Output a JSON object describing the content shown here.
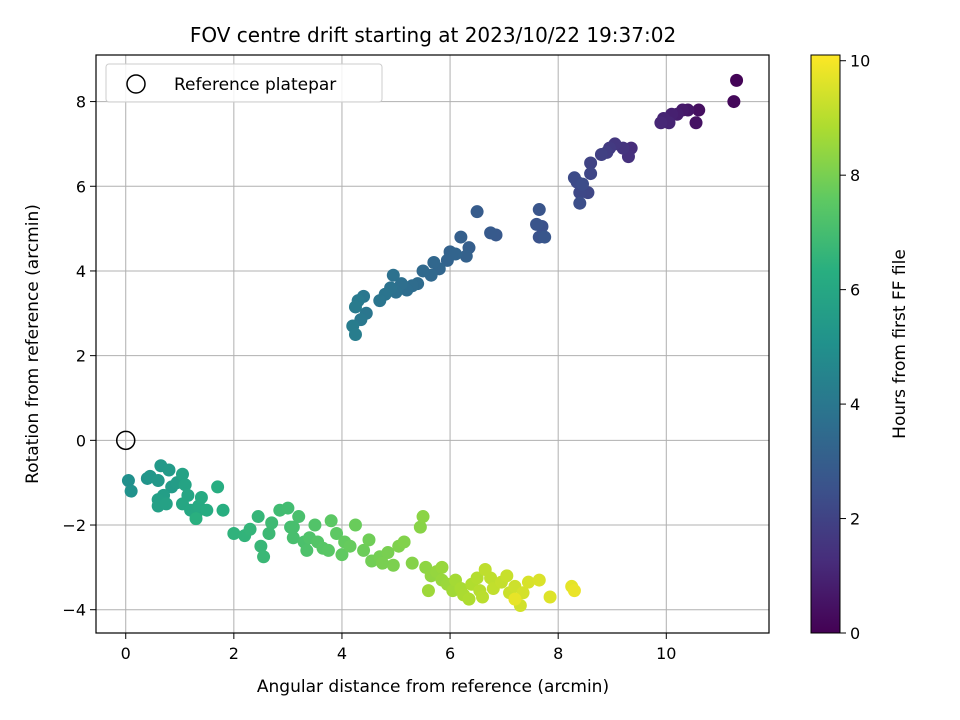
{
  "chart_data": {
    "type": "scatter",
    "title": "FOV centre drift starting at 2023/10/22 19:37:02",
    "xlabel": "Angular distance from reference (arcmin)",
    "ylabel": "Rotation from reference (arcmin)",
    "xlim": [
      -0.55,
      11.9
    ],
    "ylim": [
      -4.55,
      9.1
    ],
    "xticks": [
      0,
      2,
      4,
      6,
      8,
      10
    ],
    "yticks": [
      -4,
      -2,
      0,
      2,
      4,
      6,
      8
    ],
    "grid": true,
    "legend": {
      "entries": [
        "Reference platepar"
      ],
      "position": "upper-left"
    },
    "reference_point": {
      "x": 0,
      "y": 0
    },
    "colorbar": {
      "label": "Hours from first FF file",
      "colormap": "viridis",
      "range": [
        0,
        10.1
      ],
      "ticks": [
        0,
        2,
        4,
        6,
        8,
        10
      ]
    },
    "points": [
      [
        11.3,
        8.5,
        0.1
      ],
      [
        11.25,
        8.0,
        0.2
      ],
      [
        10.6,
        7.8,
        0.4
      ],
      [
        10.55,
        7.5,
        0.5
      ],
      [
        10.4,
        7.8,
        0.6
      ],
      [
        10.3,
        7.8,
        0.7
      ],
      [
        10.2,
        7.7,
        0.8
      ],
      [
        10.1,
        7.7,
        0.9
      ],
      [
        10.05,
        7.5,
        1.0
      ],
      [
        9.95,
        7.6,
        1.0
      ],
      [
        9.9,
        7.5,
        1.1
      ],
      [
        9.35,
        6.9,
        1.3
      ],
      [
        9.3,
        6.7,
        1.4
      ],
      [
        9.2,
        6.9,
        1.5
      ],
      [
        9.05,
        7.0,
        1.6
      ],
      [
        8.95,
        6.9,
        1.7
      ],
      [
        8.9,
        6.8,
        1.8
      ],
      [
        8.8,
        6.75,
        1.9
      ],
      [
        8.6,
        6.55,
        2.0
      ],
      [
        8.6,
        6.3,
        2.1
      ],
      [
        8.55,
        5.85,
        2.15
      ],
      [
        8.4,
        5.85,
        2.2
      ],
      [
        8.35,
        6.1,
        2.25
      ],
      [
        8.3,
        6.2,
        2.3
      ],
      [
        8.45,
        6.05,
        2.35
      ],
      [
        8.4,
        5.6,
        2.4
      ],
      [
        7.7,
        5.05,
        2.5
      ],
      [
        7.65,
        4.8,
        2.55
      ],
      [
        7.6,
        5.1,
        2.6
      ],
      [
        7.65,
        5.45,
        2.65
      ],
      [
        7.75,
        4.8,
        2.7
      ],
      [
        6.85,
        4.85,
        2.8
      ],
      [
        6.75,
        4.9,
        2.85
      ],
      [
        6.5,
        5.4,
        2.9
      ],
      [
        6.35,
        4.55,
        3.0
      ],
      [
        6.2,
        4.8,
        3.05
      ],
      [
        6.3,
        4.35,
        3.1
      ],
      [
        6.0,
        4.45,
        3.15
      ],
      [
        5.95,
        4.25,
        3.2
      ],
      [
        6.1,
        4.4,
        3.25
      ],
      [
        5.8,
        4.05,
        3.3
      ],
      [
        5.7,
        4.2,
        3.35
      ],
      [
        5.65,
        3.9,
        3.4
      ],
      [
        5.5,
        4.0,
        3.45
      ],
      [
        5.4,
        3.7,
        3.5
      ],
      [
        5.3,
        3.65,
        3.55
      ],
      [
        5.2,
        3.55,
        3.6
      ],
      [
        5.1,
        3.7,
        3.65
      ],
      [
        5.0,
        3.5,
        3.7
      ],
      [
        4.95,
        3.9,
        3.75
      ],
      [
        4.9,
        3.6,
        3.8
      ],
      [
        4.8,
        3.45,
        3.85
      ],
      [
        4.7,
        3.3,
        3.9
      ],
      [
        4.45,
        3.0,
        3.95
      ],
      [
        4.4,
        3.4,
        4.0
      ],
      [
        4.35,
        2.85,
        4.05
      ],
      [
        4.3,
        3.3,
        4.1
      ],
      [
        4.25,
        3.15,
        4.15
      ],
      [
        4.2,
        2.7,
        4.2
      ],
      [
        4.25,
        2.5,
        4.25
      ],
      [
        0.05,
        -0.95,
        5.0
      ],
      [
        0.1,
        -1.2,
        5.1
      ],
      [
        0.4,
        -0.9,
        5.2
      ],
      [
        0.45,
        -0.85,
        5.3
      ],
      [
        0.6,
        -0.95,
        5.35
      ],
      [
        0.65,
        -0.6,
        5.4
      ],
      [
        0.8,
        -0.7,
        5.45
      ],
      [
        0.85,
        -1.1,
        5.5
      ],
      [
        0.95,
        -1.0,
        5.55
      ],
      [
        0.7,
        -1.3,
        5.6
      ],
      [
        0.6,
        -1.4,
        5.65
      ],
      [
        0.6,
        -1.55,
        5.7
      ],
      [
        0.75,
        -1.5,
        5.75
      ],
      [
        1.05,
        -0.8,
        5.8
      ],
      [
        1.1,
        -1.05,
        5.85
      ],
      [
        1.15,
        -1.3,
        5.9
      ],
      [
        1.05,
        -1.5,
        5.95
      ],
      [
        1.2,
        -1.65,
        6.0
      ],
      [
        1.3,
        -1.75,
        6.05
      ],
      [
        1.35,
        -1.55,
        6.1
      ],
      [
        1.4,
        -1.35,
        6.15
      ],
      [
        1.5,
        -1.65,
        6.2
      ],
      [
        1.7,
        -1.1,
        6.25
      ],
      [
        1.8,
        -1.65,
        6.3
      ],
      [
        1.3,
        -1.85,
        6.35
      ],
      [
        2.0,
        -2.2,
        6.5
      ],
      [
        2.2,
        -2.25,
        6.55
      ],
      [
        2.3,
        -2.1,
        6.6
      ],
      [
        2.45,
        -1.8,
        6.65
      ],
      [
        2.5,
        -2.5,
        6.7
      ],
      [
        2.55,
        -2.75,
        6.75
      ],
      [
        2.65,
        -2.2,
        6.8
      ],
      [
        2.7,
        -1.95,
        6.85
      ],
      [
        2.85,
        -1.65,
        6.9
      ],
      [
        3.0,
        -1.6,
        6.95
      ],
      [
        3.05,
        -2.05,
        7.0
      ],
      [
        3.1,
        -2.3,
        7.05
      ],
      [
        3.2,
        -1.8,
        7.1
      ],
      [
        3.3,
        -2.4,
        7.15
      ],
      [
        3.35,
        -2.6,
        7.2
      ],
      [
        3.4,
        -2.3,
        7.25
      ],
      [
        3.5,
        -2.0,
        7.3
      ],
      [
        3.55,
        -2.4,
        7.35
      ],
      [
        3.65,
        -2.55,
        7.4
      ],
      [
        3.75,
        -2.6,
        7.45
      ],
      [
        3.8,
        -1.9,
        7.5
      ],
      [
        3.9,
        -2.2,
        7.55
      ],
      [
        4.0,
        -2.7,
        7.6
      ],
      [
        4.05,
        -2.4,
        7.65
      ],
      [
        4.15,
        -2.5,
        7.7
      ],
      [
        4.25,
        -2.0,
        7.75
      ],
      [
        4.4,
        -2.6,
        7.8
      ],
      [
        4.5,
        -2.35,
        7.85
      ],
      [
        4.55,
        -2.85,
        7.9
      ],
      [
        4.7,
        -2.75,
        7.95
      ],
      [
        4.85,
        -2.65,
        8.0
      ],
      [
        4.95,
        -2.95,
        8.05
      ],
      [
        5.05,
        -2.5,
        8.1
      ],
      [
        5.15,
        -2.4,
        8.15
      ],
      [
        5.3,
        -2.9,
        8.2
      ],
      [
        5.45,
        -2.05,
        8.25
      ],
      [
        5.5,
        -1.8,
        8.3
      ],
      [
        5.55,
        -3.0,
        8.35
      ],
      [
        5.65,
        -3.2,
        8.4
      ],
      [
        5.75,
        -3.1,
        8.45
      ],
      [
        5.85,
        -3.3,
        8.5
      ],
      [
        5.95,
        -3.4,
        8.55
      ],
      [
        5.6,
        -3.55,
        8.6
      ],
      [
        6.05,
        -3.55,
        8.65
      ],
      [
        6.1,
        -3.3,
        8.7
      ],
      [
        6.2,
        -3.5,
        8.75
      ],
      [
        6.25,
        -3.65,
        8.8
      ],
      [
        6.35,
        -3.75,
        8.85
      ],
      [
        6.4,
        -3.4,
        8.9
      ],
      [
        6.5,
        -3.25,
        8.95
      ],
      [
        6.55,
        -3.55,
        9.0
      ],
      [
        6.6,
        -3.7,
        9.05
      ],
      [
        6.75,
        -3.25,
        9.1
      ],
      [
        6.8,
        -3.5,
        9.15
      ],
      [
        6.95,
        -3.35,
        9.2
      ],
      [
        7.05,
        -3.2,
        9.25
      ],
      [
        7.1,
        -3.6,
        9.3
      ],
      [
        7.2,
        -3.45,
        9.35
      ],
      [
        7.3,
        -3.9,
        9.4
      ],
      [
        7.35,
        -3.6,
        9.45
      ],
      [
        7.45,
        -3.35,
        9.5
      ],
      [
        7.65,
        -3.3,
        9.55
      ],
      [
        7.85,
        -3.7,
        9.6
      ],
      [
        8.25,
        -3.45,
        9.7
      ],
      [
        8.3,
        -3.55,
        9.8
      ],
      [
        7.2,
        -3.75,
        9.75
      ],
      [
        6.65,
        -3.05,
        9.1
      ],
      [
        5.85,
        -3.0,
        8.5
      ],
      [
        4.75,
        -2.9,
        8.0
      ],
      [
        3.1,
        -2.05,
        7.05
      ]
    ]
  }
}
